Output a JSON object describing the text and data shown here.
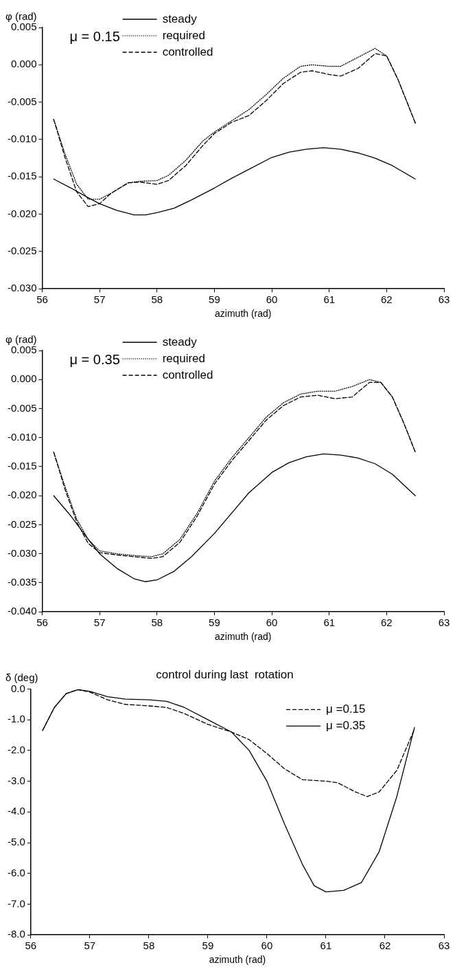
{
  "chart_data": [
    {
      "type": "line",
      "ylabel": "φ (rad)",
      "xlabel": "azimuth (rad)",
      "annotations": [
        "μ = 0.15"
      ],
      "legend": "top",
      "marker": "none",
      "xlim": [
        56,
        63
      ],
      "xticks": [
        56,
        57,
        58,
        59,
        60,
        61,
        62,
        63
      ],
      "ylim": [
        -0.03,
        0.005
      ],
      "yticks": [
        {
          "value": -0.03,
          "label": "-0.030"
        },
        {
          "value": -0.025,
          "label": "-0.025"
        },
        {
          "value": -0.02,
          "label": "-0.020"
        },
        {
          "value": -0.015,
          "label": "-0.015"
        },
        {
          "value": -0.01,
          "label": "-0.010"
        },
        {
          "value": -0.005,
          "label": "-0.005"
        },
        {
          "value": 0,
          "label": "0.000"
        },
        {
          "value": 0.005,
          "label": "0.005"
        }
      ],
      "series": [
        {
          "name": "steady",
          "color": "#000000",
          "line_style": "solid",
          "x": [
            56.2,
            56.5,
            56.8,
            57.0,
            57.3,
            57.6,
            57.8,
            58.0,
            58.3,
            58.6,
            59.0,
            59.3,
            59.6,
            60.0,
            60.3,
            60.6,
            60.9,
            61.2,
            61.5,
            61.8,
            62.1,
            62.5
          ],
          "values": [
            -0.0153,
            -0.0165,
            -0.0178,
            -0.0186,
            -0.0195,
            -0.0201,
            -0.0201,
            -0.0198,
            -0.0192,
            -0.0181,
            -0.0165,
            -0.0152,
            -0.014,
            -0.0124,
            -0.0117,
            -0.0113,
            -0.0111,
            -0.0113,
            -0.0118,
            -0.0125,
            -0.0135,
            -0.0153
          ]
        },
        {
          "name": "required",
          "color": "#000000",
          "line_style": "dotted",
          "x": [
            56.2,
            56.4,
            56.6,
            56.8,
            57.0,
            57.2,
            57.5,
            57.7,
            58.0,
            58.2,
            58.5,
            58.8,
            59.0,
            59.3,
            59.6,
            59.9,
            60.2,
            60.5,
            60.7,
            61.0,
            61.2,
            61.5,
            61.8,
            62.0,
            62.2,
            62.5
          ],
          "values": [
            -0.0073,
            -0.012,
            -0.016,
            -0.018,
            -0.018,
            -0.0172,
            -0.0158,
            -0.0156,
            -0.0155,
            -0.0148,
            -0.0128,
            -0.0102,
            -0.009,
            -0.0075,
            -0.006,
            -0.004,
            -0.0018,
            -0.0002,
            0,
            -0.0002,
            -0.0002,
            0.001,
            0.0022,
            0.0012,
            -0.002,
            -0.0078
          ]
        },
        {
          "name": "controlled",
          "color": "#000000",
          "line_style": "dashed",
          "x": [
            56.2,
            56.4,
            56.6,
            56.8,
            57.0,
            57.2,
            57.5,
            57.7,
            58.0,
            58.2,
            58.5,
            58.8,
            59.0,
            59.3,
            59.6,
            59.9,
            60.2,
            60.5,
            60.7,
            61.0,
            61.2,
            61.5,
            61.8,
            62.0,
            62.2,
            62.5
          ],
          "values": [
            -0.0073,
            -0.0125,
            -0.017,
            -0.019,
            -0.0186,
            -0.0172,
            -0.0158,
            -0.0157,
            -0.016,
            -0.0155,
            -0.0135,
            -0.0108,
            -0.0092,
            -0.0077,
            -0.0068,
            -0.0048,
            -0.0025,
            -0.001,
            -0.0008,
            -0.0013,
            -0.0015,
            -0.0005,
            0.0015,
            0.0012,
            -0.002,
            -0.0078
          ]
        }
      ]
    },
    {
      "type": "line",
      "ylabel": "φ (rad)",
      "xlabel": "azimuth (rad)",
      "annotations": [
        "μ = 0.35"
      ],
      "legend": "top",
      "marker": "none",
      "xlim": [
        56,
        63
      ],
      "xticks": [
        56,
        57,
        58,
        59,
        60,
        61,
        62,
        63
      ],
      "ylim": [
        -0.04,
        0.005
      ],
      "yticks": [
        {
          "value": -0.04,
          "label": "-0.040"
        },
        {
          "value": -0.035,
          "label": "-0.035"
        },
        {
          "value": -0.03,
          "label": "-0.030"
        },
        {
          "value": -0.025,
          "label": "-0.025"
        },
        {
          "value": -0.02,
          "label": "-0.020"
        },
        {
          "value": -0.015,
          "label": "-0.015"
        },
        {
          "value": -0.01,
          "label": "-0.010"
        },
        {
          "value": -0.005,
          "label": "-0.005"
        },
        {
          "value": 0,
          "label": "0.000"
        },
        {
          "value": 0.005,
          "label": "0.005"
        }
      ],
      "series": [
        {
          "name": "steady",
          "color": "#000000",
          "line_style": "solid",
          "x": [
            56.2,
            56.5,
            56.8,
            57.0,
            57.3,
            57.6,
            57.8,
            58.0,
            58.3,
            58.6,
            59.0,
            59.3,
            59.6,
            60.0,
            60.3,
            60.6,
            60.9,
            61.2,
            61.5,
            61.8,
            62.1,
            62.5
          ],
          "values": [
            -0.02,
            -0.0235,
            -0.0275,
            -0.03,
            -0.0325,
            -0.0343,
            -0.0348,
            -0.0345,
            -0.033,
            -0.0305,
            -0.0265,
            -0.023,
            -0.0195,
            -0.016,
            -0.0143,
            -0.0133,
            -0.0128,
            -0.013,
            -0.0135,
            -0.0145,
            -0.0163,
            -0.02
          ]
        },
        {
          "name": "required",
          "color": "#000000",
          "line_style": "dotted",
          "x": [
            56.2,
            56.4,
            56.6,
            56.8,
            57.0,
            57.3,
            57.6,
            57.9,
            58.1,
            58.4,
            58.7,
            59.0,
            59.3,
            59.6,
            59.9,
            60.2,
            60.5,
            60.8,
            61.1,
            61.4,
            61.7,
            61.9,
            62.1,
            62.3,
            62.5
          ],
          "values": [
            -0.0125,
            -0.0185,
            -0.024,
            -0.0275,
            -0.0295,
            -0.03,
            -0.0303,
            -0.0305,
            -0.03,
            -0.0275,
            -0.023,
            -0.0175,
            -0.0135,
            -0.01,
            -0.0065,
            -0.004,
            -0.0025,
            -0.002,
            -0.002,
            -0.0012,
            0,
            -0.0005,
            -0.003,
            -0.0075,
            -0.0125
          ]
        },
        {
          "name": "controlled",
          "color": "#000000",
          "line_style": "dashed",
          "x": [
            56.2,
            56.4,
            56.6,
            56.8,
            57.0,
            57.3,
            57.6,
            57.9,
            58.1,
            58.4,
            58.7,
            59.0,
            59.3,
            59.6,
            59.9,
            60.2,
            60.5,
            60.8,
            61.1,
            61.4,
            61.7,
            61.9,
            62.1,
            62.3,
            62.5
          ],
          "values": [
            -0.0125,
            -0.019,
            -0.0245,
            -0.0282,
            -0.0298,
            -0.0302,
            -0.0305,
            -0.0308,
            -0.0305,
            -0.028,
            -0.0235,
            -0.018,
            -0.014,
            -0.0105,
            -0.007,
            -0.0045,
            -0.003,
            -0.0027,
            -0.0033,
            -0.003,
            -0.0005,
            -0.0005,
            -0.003,
            -0.0075,
            -0.0125
          ]
        }
      ]
    },
    {
      "type": "line",
      "title": "control during last  rotation",
      "ylabel": "δ (deg)",
      "xlabel": "azimuth (rad)",
      "legend": "top right",
      "marker": "none",
      "xlim": [
        56,
        63
      ],
      "xticks": [
        56,
        57,
        58,
        59,
        60,
        61,
        62,
        63
      ],
      "ylim": [
        -8,
        0
      ],
      "yticks": [
        {
          "value": -8,
          "label": "-8.0"
        },
        {
          "value": -7,
          "label": "-7.0"
        },
        {
          "value": -6,
          "label": "-6.0"
        },
        {
          "value": -5,
          "label": "-5.0"
        },
        {
          "value": -4,
          "label": "-4.0"
        },
        {
          "value": -3,
          "label": "-3.0"
        },
        {
          "value": -2,
          "label": "-2.0"
        },
        {
          "value": -1,
          "label": "-1.0"
        },
        {
          "value": 0,
          "label": "0.0"
        }
      ],
      "series": [
        {
          "name": "μ =0.15",
          "color": "#000000",
          "line_style": "dashed",
          "x": [
            56.2,
            56.4,
            56.6,
            56.8,
            57.0,
            57.3,
            57.6,
            58.0,
            58.3,
            58.6,
            59.0,
            59.4,
            59.7,
            60.0,
            60.3,
            60.6,
            61.0,
            61.2,
            61.5,
            61.7,
            61.9,
            62.2,
            62.5
          ],
          "values": [
            -1.35,
            -0.6,
            -0.15,
            -0.02,
            -0.1,
            -0.35,
            -0.5,
            -0.55,
            -0.6,
            -0.8,
            -1.15,
            -1.4,
            -1.65,
            -2.1,
            -2.6,
            -2.95,
            -3.0,
            -3.05,
            -3.35,
            -3.5,
            -3.35,
            -2.65,
            -1.3
          ]
        },
        {
          "name": "μ =0.35",
          "color": "#000000",
          "line_style": "solid",
          "x": [
            56.2,
            56.4,
            56.6,
            56.8,
            57.0,
            57.3,
            57.6,
            58.0,
            58.3,
            58.6,
            59.0,
            59.4,
            59.7,
            60.0,
            60.3,
            60.6,
            60.8,
            61.0,
            61.3,
            61.6,
            61.9,
            62.2,
            62.5
          ],
          "values": [
            -1.35,
            -0.6,
            -0.15,
            -0.02,
            -0.08,
            -0.25,
            -0.33,
            -0.35,
            -0.4,
            -0.6,
            -1.0,
            -1.4,
            -2.0,
            -3.0,
            -4.4,
            -5.7,
            -6.4,
            -6.6,
            -6.55,
            -6.3,
            -5.3,
            -3.5,
            -1.25
          ]
        }
      ]
    }
  ]
}
